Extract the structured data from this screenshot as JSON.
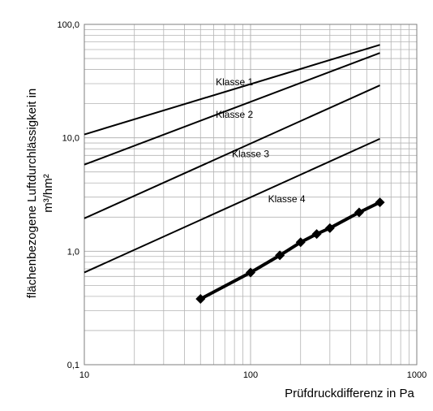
{
  "chart_data": {
    "type": "line",
    "title": "",
    "xlabel": "Prüfdruckdifferenz in Pa",
    "ylabel_line1": "flächenbezogene Luftdurchlässigkeit in",
    "ylabel_line2": "m³/hm²",
    "x_scale": "log",
    "y_scale": "log",
    "xlim": [
      10,
      1000
    ],
    "ylim": [
      0.1,
      100
    ],
    "grid": true,
    "x_ticks": [
      {
        "value": 10,
        "label": "10"
      },
      {
        "value": 100,
        "label": "100"
      },
      {
        "value": 1000,
        "label": "1000"
      }
    ],
    "y_ticks": [
      {
        "value": 0.1,
        "label": "0,1"
      },
      {
        "value": 1,
        "label": "1,0"
      },
      {
        "value": 10,
        "label": "10,0"
      },
      {
        "value": 100,
        "label": "100,0"
      }
    ],
    "class_lines": [
      {
        "name": "Klasse 1",
        "x": [
          10,
          600
        ],
        "y": [
          10.7,
          66
        ],
        "label_at": [
          80,
          31
        ]
      },
      {
        "name": "Klasse 2",
        "x": [
          10,
          600
        ],
        "y": [
          5.8,
          56
        ],
        "label_at": [
          80,
          16
        ]
      },
      {
        "name": "Klasse 3",
        "x": [
          10,
          600
        ],
        "y": [
          1.95,
          29
        ],
        "label_at": [
          100,
          7.2
        ]
      },
      {
        "name": "Klasse 4",
        "x": [
          10,
          600
        ],
        "y": [
          0.65,
          9.8
        ],
        "label_at": [
          165,
          2.9
        ]
      }
    ],
    "measured": {
      "x": [
        50,
        100,
        150,
        200,
        250,
        300,
        450,
        600
      ],
      "y": [
        0.38,
        0.65,
        0.92,
        1.2,
        1.42,
        1.6,
        2.2,
        2.7
      ]
    },
    "colors": {
      "lines": "#000000",
      "grid": "#b4b4b4",
      "border": "#7f7f7f"
    }
  }
}
